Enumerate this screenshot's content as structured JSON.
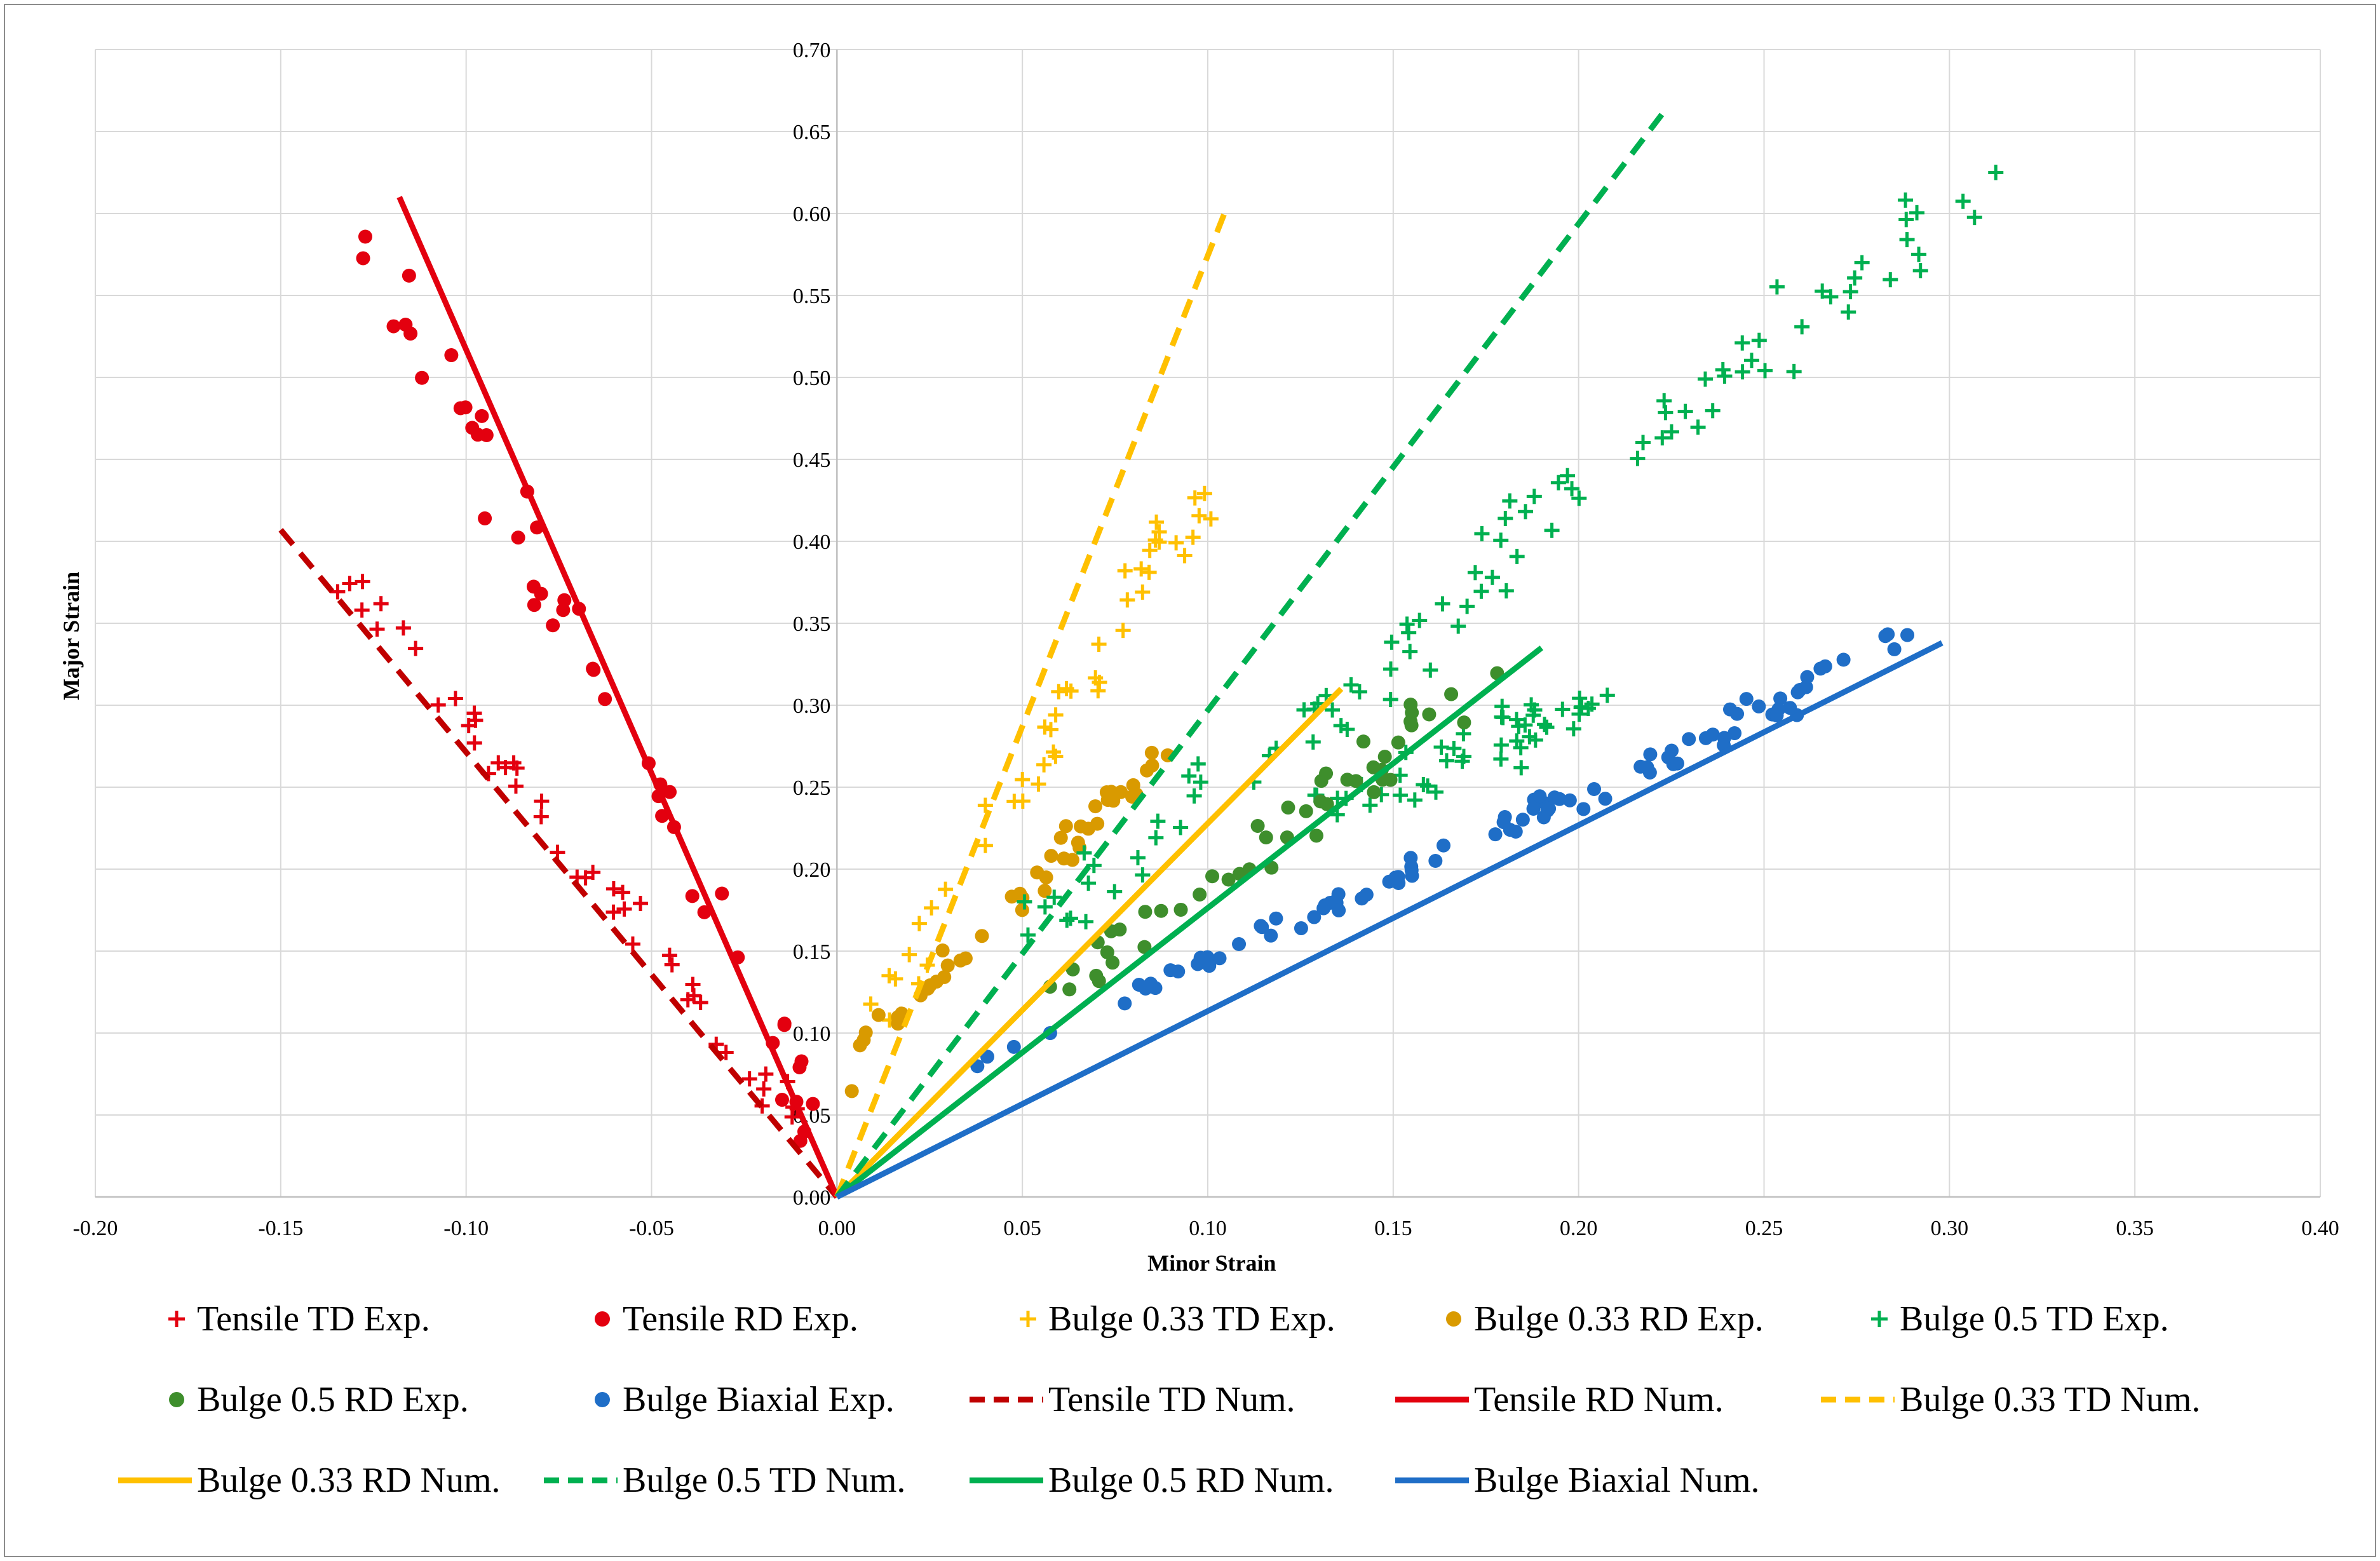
{
  "chart_data": {
    "type": "scatter",
    "title": "",
    "xlabel": "Minor Strain",
    "ylabel": "Major Strain",
    "xlim": [
      -0.2,
      0.4
    ],
    "ylim": [
      0.0,
      0.7
    ],
    "x_ticks": [
      -0.2,
      -0.15,
      -0.1,
      -0.05,
      0.0,
      0.05,
      0.1,
      0.15,
      0.2,
      0.25,
      0.3,
      0.35,
      0.4
    ],
    "y_ticks": [
      0.0,
      0.05,
      0.1,
      0.15,
      0.2,
      0.25,
      0.3,
      0.35,
      0.4,
      0.45,
      0.5,
      0.55,
      0.6,
      0.65,
      0.7
    ],
    "x_tick_labels": [
      "-0.20",
      "-0.15",
      "-0.10",
      "-0.05",
      "0.00",
      "0.05",
      "0.10",
      "0.15",
      "0.20",
      "0.25",
      "0.30",
      "0.35",
      "0.40"
    ],
    "y_tick_labels": [
      "0.00",
      "0.05",
      "0.10",
      "0.15",
      "0.20",
      "0.25",
      "0.30",
      "0.35",
      "0.40",
      "0.45",
      "0.50",
      "0.55",
      "0.60",
      "0.65",
      "0.70"
    ],
    "grid": true,
    "legend_position": "bottom",
    "series": [
      {
        "name": "Tensile TD Exp.",
        "kind": "scatter",
        "marker": "plus",
        "color": "#e3000f",
        "bands": [
          [
            -0.133,
            0.378,
            -0.003,
            0.025
          ]
        ],
        "jitter": [
          0.012,
          0.012
        ]
      },
      {
        "name": "Tensile RD Exp.",
        "kind": "scatter",
        "marker": "dot",
        "color": "#e3000f",
        "bands": [
          [
            -0.128,
            0.6,
            -0.004,
            0.032
          ]
        ],
        "jitter": [
          0.012,
          0.015
        ]
      },
      {
        "name": "Bulge 0.33 TD Exp.",
        "kind": "scatter",
        "marker": "plus",
        "color": "#ffc000",
        "bands": [
          [
            0.01,
            0.1,
            0.1,
            0.44
          ]
        ],
        "jitter": [
          0.012,
          0.02
        ]
      },
      {
        "name": "Bulge 0.33 RD Exp.",
        "kind": "scatter",
        "marker": "dot",
        "color": "#d99a00",
        "bands": [
          [
            -0.002,
            0.068,
            0.09,
            0.28
          ]
        ],
        "jitter": [
          0.01,
          0.02
        ]
      },
      {
        "name": "Bulge 0.5 TD Exp.",
        "kind": "scatter",
        "marker": "plus",
        "color": "#00b050",
        "bands": [
          [
            0.05,
            0.16,
            0.18,
            0.38
          ],
          [
            0.18,
            0.4,
            0.31,
            0.62
          ],
          [
            0.14,
            0.24,
            0.2,
            0.3
          ]
        ],
        "jitter": [
          0.025,
          0.025
        ]
      },
      {
        "name": "Bulge 0.5 RD Exp.",
        "kind": "scatter",
        "marker": "dot",
        "color": "#3e8e2c",
        "bands": [
          [
            0.06,
            0.125,
            0.178,
            0.32
          ]
        ],
        "jitter": [
          0.018,
          0.018
        ]
      },
      {
        "name": "Bulge Biaxial Exp.",
        "kind": "scatter",
        "marker": "dot",
        "color": "#1f6ec7",
        "bands": [
          [
            0.038,
            0.08,
            0.295,
            0.35
          ],
          [
            0.08,
            0.125,
            0.26,
            0.3
          ]
        ],
        "jitter": [
          0.006,
          0.01
        ]
      },
      {
        "name": "Tensile TD Num.",
        "kind": "line",
        "dash": true,
        "color": "#c00000",
        "x": [
          -0.15,
          0.0
        ],
        "y": [
          0.407,
          0.0
        ]
      },
      {
        "name": "Tensile RD Num.",
        "kind": "line",
        "dash": false,
        "color": "#e3000f",
        "x": [
          -0.118,
          0.0
        ],
        "y": [
          0.61,
          0.0
        ]
      },
      {
        "name": "Bulge 0.33 TD Num.",
        "kind": "line",
        "dash": true,
        "color": "#ffc000",
        "x": [
          0.0,
          0.105
        ],
        "y": [
          0.0,
          0.603
        ]
      },
      {
        "name": "Bulge 0.33 RD Num.",
        "kind": "line",
        "dash": false,
        "color": "#ffc000",
        "x": [
          0.0,
          0.136
        ],
        "y": [
          0.0,
          0.31
        ]
      },
      {
        "name": "Bulge 0.5 TD Num.",
        "kind": "line",
        "dash": true,
        "color": "#00b050",
        "x": [
          0.0,
          0.224
        ],
        "y": [
          0.0,
          0.665
        ]
      },
      {
        "name": "Bulge 0.5 RD Num.",
        "kind": "line",
        "dash": false,
        "color": "#00b050",
        "x": [
          0.0,
          0.19
        ],
        "y": [
          0.0,
          0.335
        ]
      },
      {
        "name": "Bulge Biaxial Num.",
        "kind": "line",
        "dash": false,
        "color": "#1f6ec7",
        "x": [
          0.0,
          0.298
        ],
        "y": [
          0.0,
          0.338
        ]
      }
    ]
  }
}
